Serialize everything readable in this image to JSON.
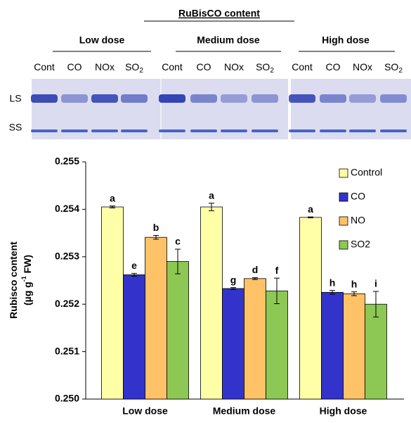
{
  "gel": {
    "title": "RuBisCO content",
    "groups": [
      "Low dose",
      "Medium dose",
      "High dose"
    ],
    "lanes": [
      [
        "Cont"
      ],
      [
        "CO"
      ],
      [
        "NOx"
      ],
      [
        "SO",
        "2"
      ]
    ],
    "rows": [
      "LS",
      "SS"
    ]
  },
  "chart_data": {
    "type": "bar",
    "y_label": "Rubisco content",
    "y_unit": [
      "(µg g",
      "-1",
      " FW)"
    ],
    "categories": [
      "Low dose",
      "Medium dose",
      "High dose"
    ],
    "series": [
      {
        "name": "Control",
        "color": "#ffffa8",
        "values": [
          0.25405,
          0.25405,
          0.25383
        ],
        "errors": [
          2e-05,
          8e-05,
          1e-05
        ],
        "letters": [
          "a",
          "a",
          "a"
        ]
      },
      {
        "name": "CO",
        "color": "#3333cc",
        "values": [
          0.25262,
          0.25233,
          0.25225
        ],
        "errors": [
          3e-05,
          2e-05,
          4e-05
        ],
        "letters": [
          "e",
          "g",
          "h"
        ]
      },
      {
        "name": "NO",
        "color": "#ffc266",
        "values": [
          0.25341,
          0.25254,
          0.25222
        ],
        "errors": [
          4e-05,
          2e-05,
          4e-05
        ],
        "letters": [
          "b",
          "d",
          "h"
        ]
      },
      {
        "name": "SO2",
        "color": "#8dc854",
        "values": [
          0.2529,
          0.25228,
          0.252
        ],
        "errors": [
          0.00026,
          0.00027,
          0.00027
        ],
        "letters": [
          "c",
          "f",
          "i"
        ]
      }
    ],
    "ylim": [
      0.25,
      0.255
    ],
    "yticks": [
      {
        "value": 0.25,
        "label": "0.250"
      },
      0.251,
      0.252,
      0.253,
      0.254,
      0.255
    ],
    "legend": "top-right"
  }
}
